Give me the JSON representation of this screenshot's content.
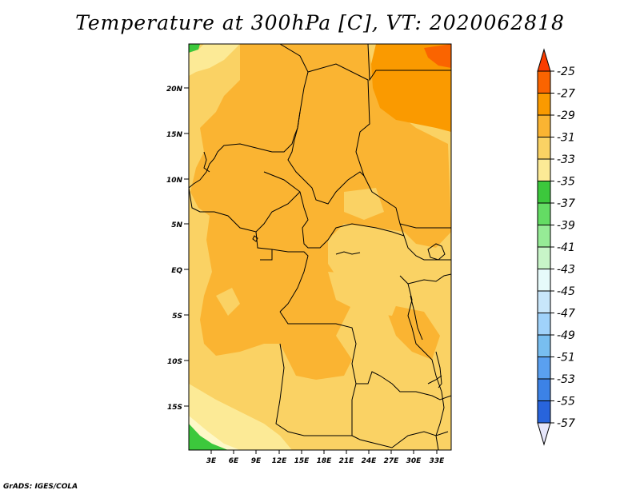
{
  "title": "Temperature at 300hPa [C], VT: 2020062818",
  "credit": "GrADS: IGES/COLA",
  "map": {
    "lon_labels": [
      "3E",
      "6E",
      "9E",
      "12E",
      "15E",
      "18E",
      "21E",
      "24E",
      "27E",
      "30E",
      "33E"
    ],
    "lat_labels": [
      "20N",
      "15N",
      "10N",
      "5N",
      "EQ",
      "5S",
      "10S",
      "15S"
    ]
  },
  "colorbar": {
    "levels": [
      "-25",
      "-27",
      "-29",
      "-31",
      "-33",
      "-35",
      "-37",
      "-39",
      "-41",
      "-43",
      "-45",
      "-47",
      "-49",
      "-51",
      "-53",
      "-55",
      "-57"
    ],
    "colors": [
      "#fa3c00",
      "#fa6400",
      "#fa9a00",
      "#fab432",
      "#fad264",
      "#fcea96",
      "#fef8c8",
      "#3cc83c",
      "#64dc64",
      "#96eb96",
      "#c8f5c8",
      "#e6fafa",
      "#c8e6fa",
      "#a0d2fa",
      "#78bef0",
      "#5aa0f0",
      "#3c82e6",
      "#2864dc",
      "#1450c8",
      "#0a3cb4",
      "#001e78",
      "#e6e6fa"
    ]
  }
}
